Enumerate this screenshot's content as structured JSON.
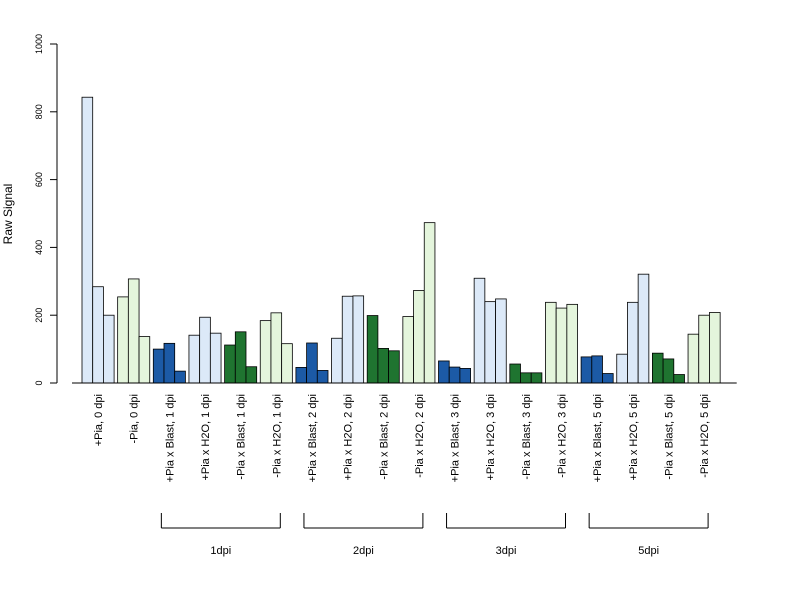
{
  "chart_data": {
    "type": "bar",
    "title": "",
    "xlabel": "",
    "ylabel": "Raw Signal",
    "ylim": [
      0,
      1000
    ],
    "yticks": [
      0,
      200,
      400,
      600,
      800,
      1000
    ],
    "categories": [
      {
        "label": "+Pia, 0 dpi",
        "color": "#dce9f8",
        "values": [
          843,
          284,
          200
        ]
      },
      {
        "label": "-Pia, 0 dpi",
        "color": "#e4f5dc",
        "values": [
          254,
          307,
          137
        ]
      },
      {
        "label": "+Pia x Blast, 1 dpi",
        "color": "#1c5aa6",
        "values": [
          100,
          117,
          35
        ]
      },
      {
        "label": "+Pia x H2O, 1 dpi",
        "color": "#dce9f8",
        "values": [
          141,
          194,
          147
        ]
      },
      {
        "label": "-Pia x Blast, 1 dpi",
        "color": "#1f7430",
        "values": [
          112,
          151,
          48
        ]
      },
      {
        "label": "-Pia x H2O, 1 dpi",
        "color": "#e4f5dc",
        "values": [
          184,
          207,
          116
        ]
      },
      {
        "label": "+Pia x Blast, 2 dpi",
        "color": "#1c5aa6",
        "values": [
          46,
          118,
          37
        ]
      },
      {
        "label": "+Pia x H2O, 2 dpi",
        "color": "#dce9f8",
        "values": [
          132,
          256,
          257
        ]
      },
      {
        "label": "-Pia x Blast, 2 dpi",
        "color": "#1f7430",
        "values": [
          199,
          102,
          95
        ]
      },
      {
        "label": "-Pia x H2O, 2 dpi",
        "color": "#e4f5dc",
        "values": [
          196,
          273,
          473
        ]
      },
      {
        "label": "+Pia x Blast, 3 dpi",
        "color": "#1c5aa6",
        "values": [
          65,
          47,
          43
        ]
      },
      {
        "label": "+Pia x H2O, 3 dpi",
        "color": "#dce9f8",
        "values": [
          309,
          240,
          248
        ]
      },
      {
        "label": "-Pia x Blast, 3 dpi",
        "color": "#1f7430",
        "values": [
          56,
          30,
          30
        ]
      },
      {
        "label": "-Pia x H2O, 3 dpi",
        "color": "#e4f5dc",
        "values": [
          238,
          221,
          232
        ]
      },
      {
        "label": "+Pia x Blast, 5 dpi",
        "color": "#1c5aa6",
        "values": [
          77,
          80,
          28
        ]
      },
      {
        "label": "+Pia x H2O, 5 dpi",
        "color": "#dce9f8",
        "values": [
          85,
          238,
          321
        ]
      },
      {
        "label": "-Pia x Blast, 5 dpi",
        "color": "#1f7430",
        "values": [
          88,
          71,
          25
        ]
      },
      {
        "label": "-Pia x H2O, 5 dpi",
        "color": "#e4f5dc",
        "values": [
          144,
          200,
          208
        ]
      }
    ],
    "groups": [
      {
        "label": "1dpi",
        "from": 2,
        "to": 5
      },
      {
        "label": "2dpi",
        "from": 6,
        "to": 9
      },
      {
        "label": "3dpi",
        "from": 10,
        "to": 13
      },
      {
        "label": "5dpi",
        "from": 14,
        "to": 17
      }
    ],
    "grid": false,
    "legend": "none"
  }
}
